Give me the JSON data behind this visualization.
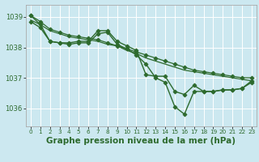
{
  "background_color": "#cce8f0",
  "grid_color": "#ffffff",
  "line_color": "#2d6a2d",
  "title": "Graphe pression niveau de la mer (hPa)",
  "xlim": [
    -0.5,
    23.5
  ],
  "ylim": [
    1035.4,
    1039.4
  ],
  "yticks": [
    1036,
    1037,
    1038,
    1039
  ],
  "xticks": [
    0,
    1,
    2,
    3,
    4,
    5,
    6,
    7,
    8,
    9,
    10,
    11,
    12,
    13,
    14,
    15,
    16,
    17,
    18,
    19,
    20,
    21,
    22,
    23
  ],
  "series": [
    {
      "x": [
        0,
        1,
        2,
        3,
        4,
        5,
        6,
        7,
        8,
        9,
        10,
        11,
        12,
        13,
        14,
        15,
        16,
        17,
        18,
        19,
        20,
        21,
        22,
        23
      ],
      "y": [
        1039.05,
        1038.75,
        1038.2,
        1038.15,
        1038.15,
        1038.2,
        1038.2,
        1038.55,
        1038.55,
        1038.2,
        1038.05,
        1037.9,
        1037.1,
        1037.05,
        1037.05,
        1036.55,
        1036.45,
        1036.75,
        1036.55,
        1036.55,
        1036.6,
        1036.6,
        1036.65,
        1036.85
      ],
      "marker": "D",
      "markersize": 2.5,
      "linewidth": 1.0
    },
    {
      "x": [
        0,
        1,
        2,
        3,
        4,
        5,
        6,
        7,
        8,
        9,
        10,
        11,
        12,
        13,
        14,
        15,
        16,
        17,
        18,
        19,
        20,
        21,
        22,
        23
      ],
      "y": [
        1038.9,
        1038.75,
        1038.55,
        1038.45,
        1038.35,
        1038.3,
        1038.25,
        1038.2,
        1038.1,
        1038.05,
        1037.9,
        1037.8,
        1037.65,
        1037.55,
        1037.45,
        1037.35,
        1037.25,
        1037.2,
        1037.15,
        1037.1,
        1037.05,
        1037.0,
        1036.95,
        1036.9
      ],
      "marker": null,
      "markersize": 0,
      "linewidth": 0.9
    },
    {
      "x": [
        0,
        1,
        2,
        3,
        4,
        5,
        6,
        7,
        8,
        9,
        10,
        11,
        12,
        13,
        14,
        15,
        16,
        17,
        18,
        19,
        20,
        21,
        22,
        23
      ],
      "y": [
        1038.85,
        1038.65,
        1038.2,
        1038.15,
        1038.1,
        1038.15,
        1038.15,
        1038.45,
        1038.5,
        1038.1,
        1037.95,
        1037.75,
        1037.45,
        1037.0,
        1036.85,
        1036.05,
        1035.8,
        1036.55,
        1036.55,
        1036.55,
        1036.6,
        1036.6,
        1036.65,
        1036.9
      ],
      "marker": "D",
      "markersize": 2.5,
      "linewidth": 1.0
    },
    {
      "x": [
        0,
        1,
        2,
        3,
        4,
        5,
        6,
        7,
        8,
        9,
        10,
        11,
        12,
        13,
        14,
        15,
        16,
        17,
        18,
        19,
        20,
        21,
        22,
        23
      ],
      "y": [
        1039.05,
        1038.85,
        1038.6,
        1038.5,
        1038.4,
        1038.35,
        1038.3,
        1038.25,
        1038.15,
        1038.05,
        1037.95,
        1037.85,
        1037.75,
        1037.65,
        1037.55,
        1037.45,
        1037.35,
        1037.25,
        1037.2,
        1037.15,
        1037.1,
        1037.05,
        1037.0,
        1037.0
      ],
      "marker": "D",
      "markersize": 2.5,
      "linewidth": 0.9
    }
  ],
  "title_fontsize": 7.5,
  "tick_fontsize": 6.0,
  "xtick_fontsize": 5.2
}
